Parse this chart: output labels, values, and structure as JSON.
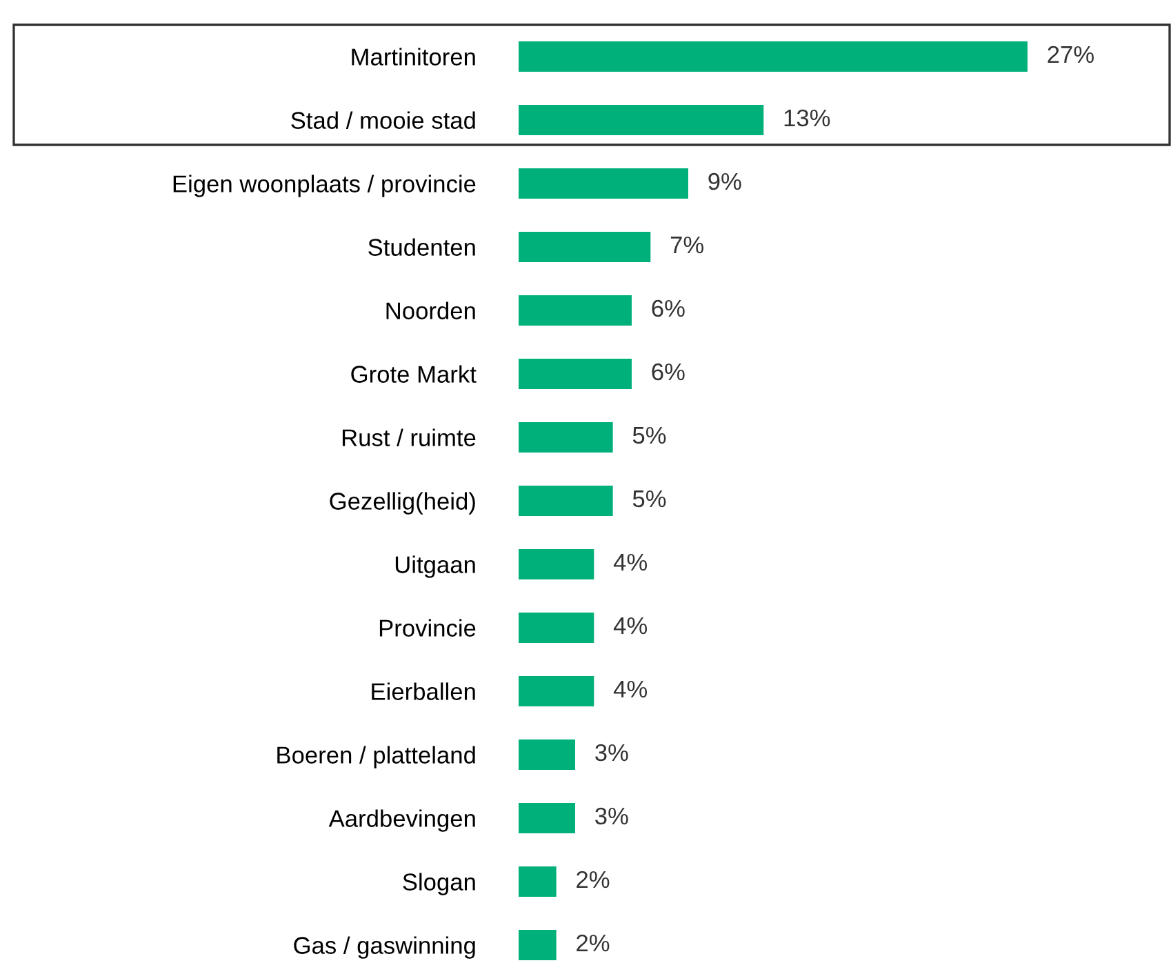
{
  "chart_data": {
    "type": "bar",
    "orientation": "horizontal",
    "tick_labels": "y",
    "data_labels": true,
    "categories": [
      "Martinitoren",
      "Stad / mooie stad",
      "Eigen woonplaats / provincie",
      "Studenten",
      "Noorden",
      "Grote Markt",
      "Rust / ruimte",
      "Gezellig(heid)",
      "Uitgaan",
      "Provincie",
      "Eierballen",
      "Boeren / platteland",
      "Aardbevingen",
      "Slogan",
      "Gas / gaswinning"
    ],
    "values": [
      27,
      13,
      9,
      7,
      6,
      6,
      5,
      5,
      4,
      4,
      4,
      3,
      3,
      2,
      2
    ],
    "value_labels": [
      "27%",
      "13%",
      "9%",
      "7%",
      "6%",
      "6%",
      "5%",
      "5%",
      "4%",
      "4%",
      "4%",
      "3%",
      "3%",
      "2%",
      "2%"
    ],
    "color": "#00b07a",
    "grid": false,
    "legend": false
  }
}
